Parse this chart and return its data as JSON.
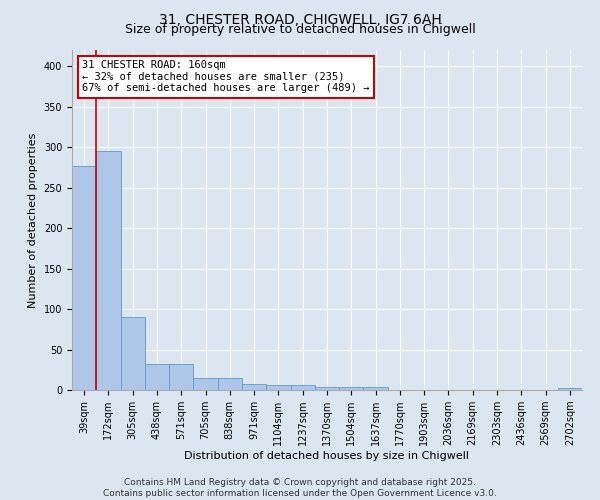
{
  "title_line1": "31, CHESTER ROAD, CHIGWELL, IG7 6AH",
  "title_line2": "Size of property relative to detached houses in Chigwell",
  "xlabel": "Distribution of detached houses by size in Chigwell",
  "ylabel": "Number of detached properties",
  "footer_line1": "Contains HM Land Registry data © Crown copyright and database right 2025.",
  "footer_line2": "Contains public sector information licensed under the Open Government Licence v3.0.",
  "bar_labels": [
    "39sqm",
    "172sqm",
    "305sqm",
    "438sqm",
    "571sqm",
    "705sqm",
    "838sqm",
    "971sqm",
    "1104sqm",
    "1237sqm",
    "1370sqm",
    "1504sqm",
    "1637sqm",
    "1770sqm",
    "1903sqm",
    "2036sqm",
    "2169sqm",
    "2303sqm",
    "2436sqm",
    "2569sqm",
    "2702sqm"
  ],
  "bar_values": [
    277,
    295,
    90,
    32,
    32,
    15,
    15,
    7,
    6,
    6,
    4,
    4,
    4,
    0,
    0,
    0,
    0,
    0,
    0,
    0,
    3
  ],
  "bar_color": "#aec6e8",
  "bar_edge_color": "#5b9bd5",
  "background_color": "#dce6f1",
  "plot_bg_color": "#dce6f1",
  "grid_color": "#ffffff",
  "annotation_box_color": "#cc0000",
  "annotation_text_line1": "31 CHESTER ROAD: 160sqm",
  "annotation_text_line2": "← 32% of detached houses are smaller (235)",
  "annotation_text_line3": "67% of semi-detached houses are larger (489) →",
  "marker_line_color": "#cc0000",
  "ylim": [
    0,
    420
  ],
  "yticks": [
    0,
    50,
    100,
    150,
    200,
    250,
    300,
    350,
    400
  ],
  "title_fontsize": 10,
  "subtitle_fontsize": 9,
  "axis_label_fontsize": 8,
  "tick_fontsize": 7,
  "annotation_fontsize": 7.5,
  "footer_fontsize": 6.5
}
